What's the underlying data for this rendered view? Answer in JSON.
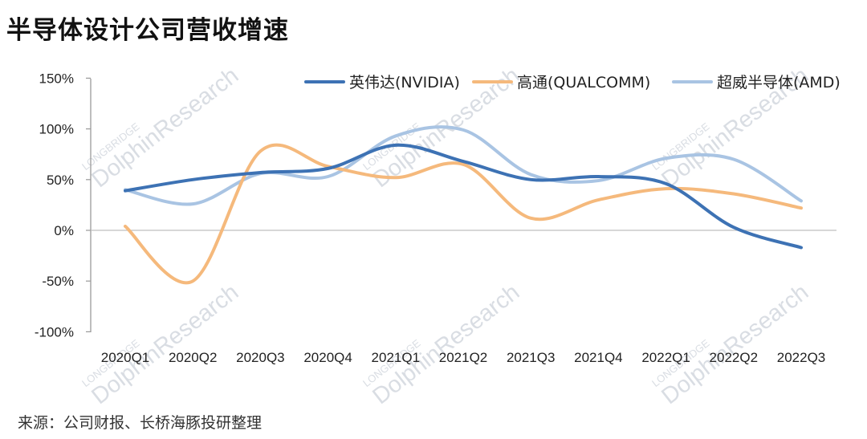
{
  "title": "半导体设计公司营收增速",
  "source": "来源：公司财报、长桥海豚投研整理",
  "watermark": {
    "brand": "LONGBRIDGE",
    "text": "DolphinResearch"
  },
  "chart_data": {
    "type": "line",
    "title": "半导体设计公司营收增速",
    "categories": [
      "2020Q1",
      "2020Q2",
      "2020Q3",
      "2020Q4",
      "2021Q1",
      "2021Q2",
      "2021Q3",
      "2021Q4",
      "2022Q1",
      "2022Q2",
      "2022Q3"
    ],
    "yticks": [
      "150%",
      "100%",
      "50%",
      "0%",
      "-50%",
      "-100%"
    ],
    "ylim": [
      -100,
      150
    ],
    "grid": false,
    "legend_position": "top-right",
    "series": [
      {
        "name": "英伟达(NVIDIA)",
        "color": "#3d72b4",
        "values": [
          39,
          50,
          57,
          61,
          84,
          68,
          50,
          53,
          46,
          3,
          -17
        ]
      },
      {
        "name": "高通(QUALCOMM)",
        "color": "#f5b97c",
        "values": [
          4,
          -50,
          78,
          63,
          52,
          65,
          12,
          30,
          41,
          36,
          22
        ]
      },
      {
        "name": "超威半导体(AMD)",
        "color": "#a9c4e3",
        "values": [
          40,
          26,
          56,
          53,
          93,
          99,
          55,
          49,
          71,
          70,
          29
        ]
      }
    ]
  }
}
